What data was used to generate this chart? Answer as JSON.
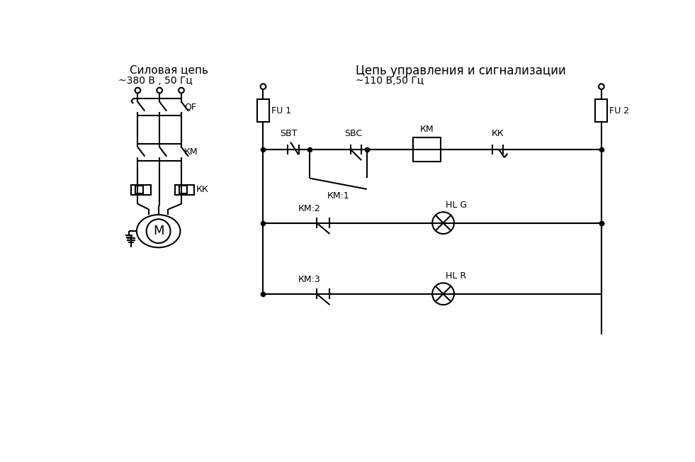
{
  "title_left": "Силовая цепь",
  "title_right": "Цепь управления и сигнализации",
  "subtitle_left": "~380 В , 50 Гц",
  "subtitle_right": "~110 В,50 Гц",
  "bg_color": "#ffffff",
  "line_color": "#000000",
  "lw": 1.5,
  "font_size": 10,
  "figsize": [
    9.81,
    6.52
  ],
  "dpi": 100
}
